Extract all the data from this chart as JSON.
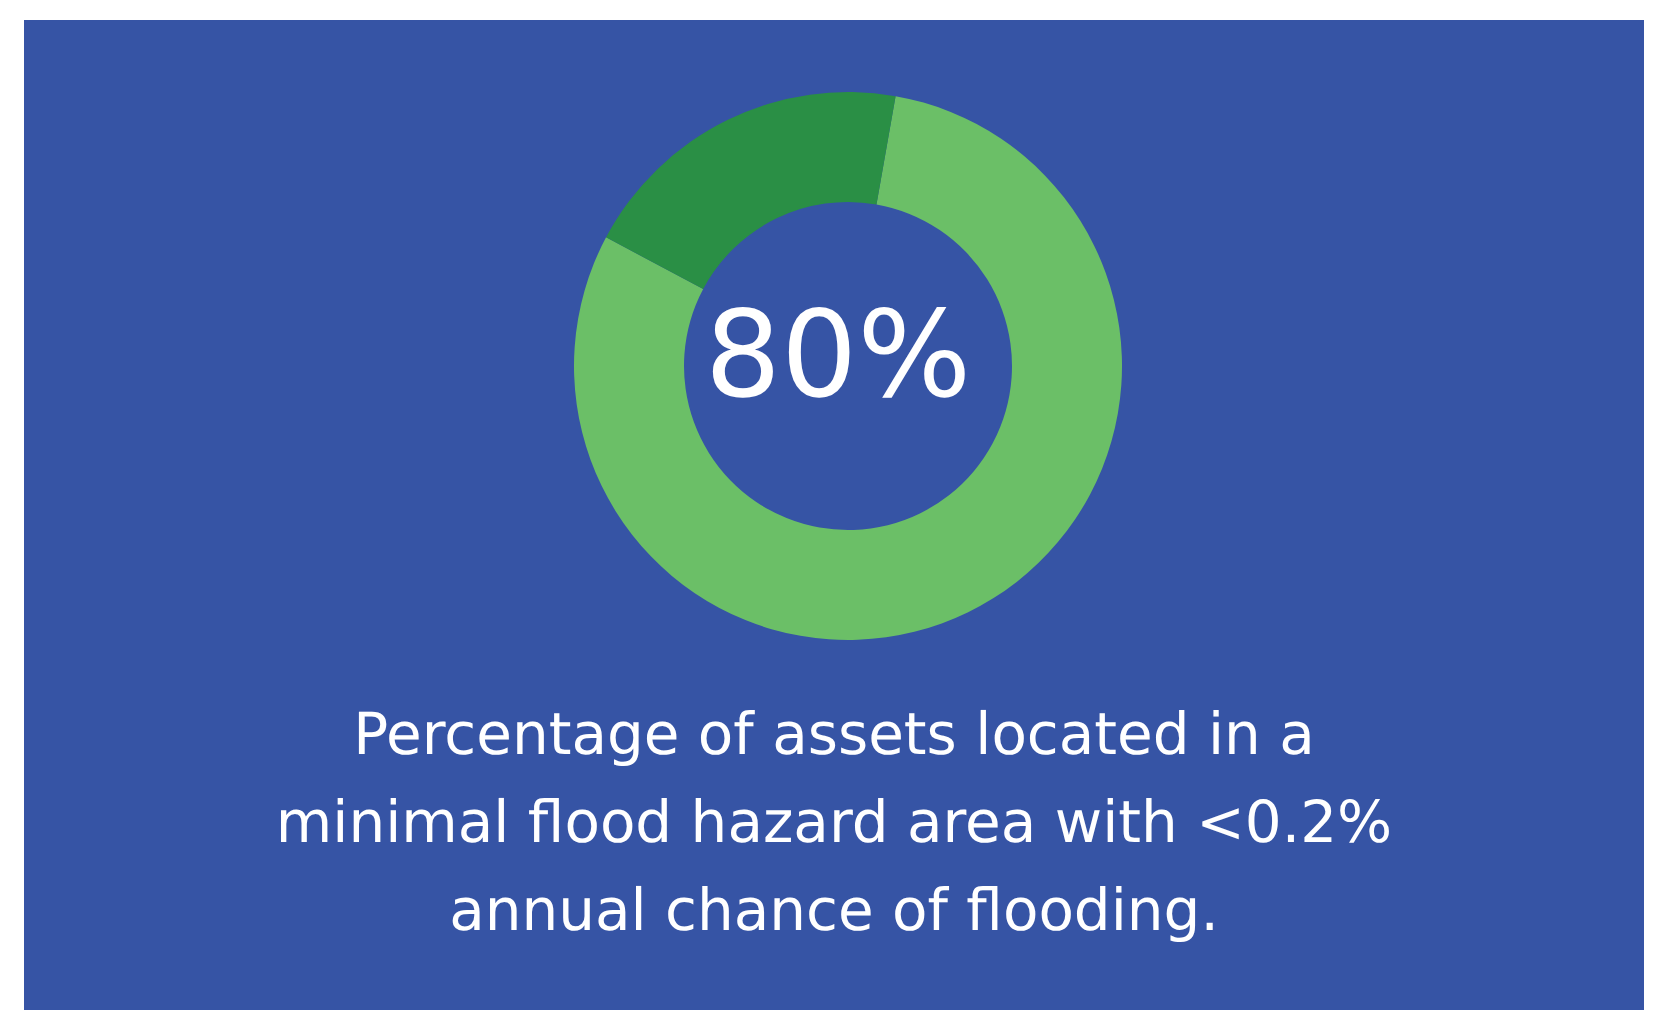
{
  "chart_data": {
    "type": "donut",
    "title": "Percentage of assets located in a\nminimal flood hazard area with <0.2%\nannual chance of flooding.",
    "categories": [
      null,
      null
    ],
    "values": [
      80,
      20
    ],
    "colors": [
      "#6bbf67",
      "#2a8f45"
    ],
    "value_labels": [
      "80%",
      null
    ],
    "legend": false
  }
}
